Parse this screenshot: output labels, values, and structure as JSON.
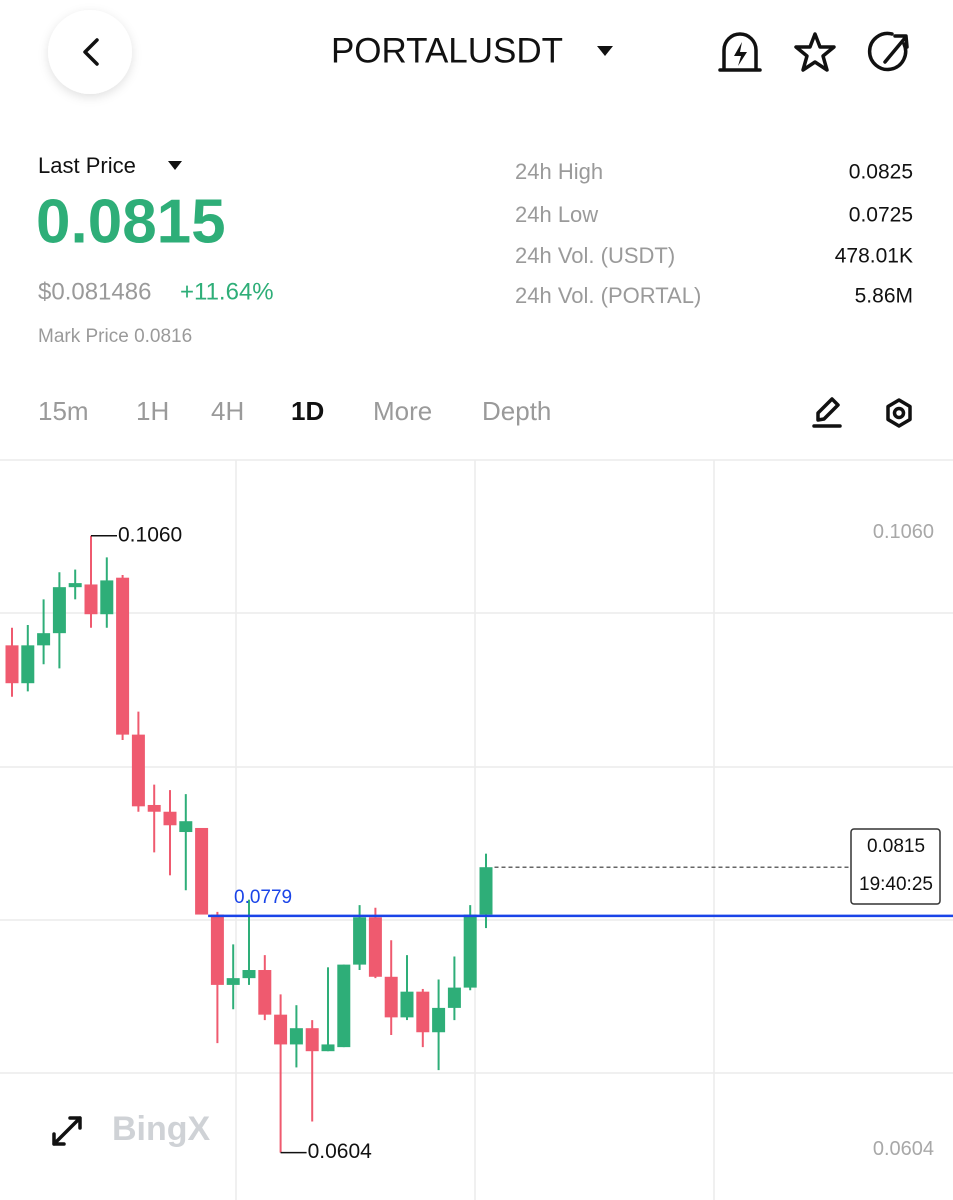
{
  "header": {
    "title": "PORTALUSDT"
  },
  "price": {
    "label": "Last Price",
    "last": "0.0815",
    "usd": "$0.081486",
    "change": "+11.64%",
    "mark": "Mark Price 0.0816"
  },
  "stats": [
    {
      "label": "24h High",
      "value": "0.0825"
    },
    {
      "label": "24h Low",
      "value": "0.0725"
    },
    {
      "label": "24h Vol. (USDT)",
      "value": "478.01K"
    },
    {
      "label": "24h Vol. (PORTAL)",
      "value": "5.86M"
    }
  ],
  "tabs": [
    "15m",
    "1H",
    "4H",
    "1D",
    "More",
    "Depth"
  ],
  "chart_data": {
    "type": "candlestick",
    "open": [
      0.0979,
      0.0951,
      0.0979,
      0.0988,
      0.1022,
      0.1024,
      0.1002,
      0.1029,
      0.0913,
      0.0861,
      0.0856,
      0.0841,
      0.0844,
      0.078,
      0.0728,
      0.0733,
      0.0739,
      0.0706,
      0.0684,
      0.0696,
      0.0679,
      0.0682,
      0.0743,
      0.0778,
      0.0734,
      0.0704,
      0.0723,
      0.0693,
      0.0711,
      0.0726,
      0.078
    ],
    "high": [
      0.0992,
      0.0994,
      0.1013,
      0.1033,
      0.1035,
      0.106,
      0.1044,
      0.1031,
      0.093,
      0.0876,
      0.0872,
      0.0869,
      0.0844,
      0.0782,
      0.0758,
      0.0791,
      0.075,
      0.0721,
      0.0713,
      0.0702,
      0.0741,
      0.0743,
      0.0787,
      0.0785,
      0.0761,
      0.075,
      0.0725,
      0.0732,
      0.0749,
      0.0787,
      0.0825
    ],
    "low": [
      0.0941,
      0.0945,
      0.0965,
      0.0962,
      0.1013,
      0.0992,
      0.0992,
      0.0909,
      0.0856,
      0.0826,
      0.0809,
      0.0798,
      0.078,
      0.0685,
      0.071,
      0.0728,
      0.0702,
      0.0604,
      0.0667,
      0.0627,
      0.0679,
      0.0682,
      0.0739,
      0.0733,
      0.0691,
      0.0702,
      0.0682,
      0.0665,
      0.0702,
      0.0724,
      0.077
    ],
    "close": [
      0.0951,
      0.0979,
      0.0988,
      0.1022,
      0.1025,
      0.1002,
      0.1027,
      0.0913,
      0.086,
      0.0856,
      0.0846,
      0.0849,
      0.078,
      0.0728,
      0.0733,
      0.0739,
      0.0706,
      0.0684,
      0.0696,
      0.0679,
      0.0684,
      0.0743,
      0.0778,
      0.0734,
      0.0704,
      0.0723,
      0.0693,
      0.0711,
      0.0726,
      0.078,
      0.0815
    ],
    "up_color": "#2eae78",
    "down_color": "#ef5a6f",
    "ylim": [
      0.0569,
      0.1116
    ],
    "yticks": [
      {
        "value": 0.106,
        "label": "0.1060"
      },
      0.0604
    ],
    "max_marker": {
      "value": 0.106,
      "label": "0.1060"
    },
    "min_marker": 0.0604,
    "line_level": 0.0779,
    "line_color": "#1a44e8",
    "last_price": 0.0815,
    "countdown": "19:40:25",
    "watermark": "BingX"
  }
}
